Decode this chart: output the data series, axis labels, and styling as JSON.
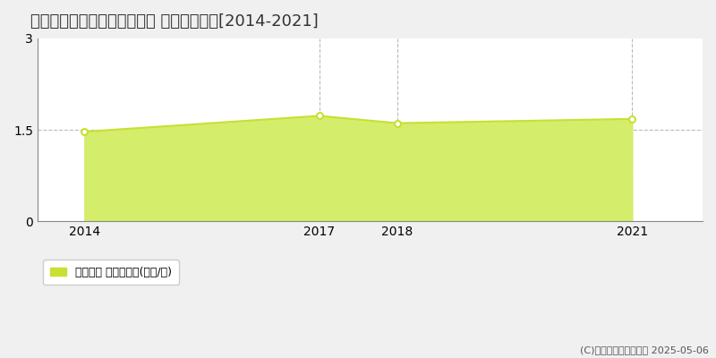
{
  "title": "小矢部市フロンティアパーク 土地価格推移[2014-2021]",
  "years": [
    2014,
    2017,
    2018,
    2021
  ],
  "values": [
    1.47,
    1.73,
    1.61,
    1.68
  ],
  "xlim": [
    2013.4,
    2021.9
  ],
  "ylim": [
    0,
    3.0
  ],
  "yticks": [
    0,
    1.5,
    3
  ],
  "xticks": [
    2014,
    2017,
    2018,
    2021
  ],
  "line_color": "#c8e032",
  "fill_color": "#d4ed6b",
  "fill_alpha": 1.0,
  "marker_color": "#ffffff",
  "marker_edge_color": "#c8e032",
  "grid_color": "#bbbbbb",
  "background_color": "#f0f0f0",
  "plot_bg_color": "#ffffff",
  "legend_label": "土地価格 平均坪単価(万円/坪)",
  "copyright_text": "(C)土地価格ドットコム 2025-05-06",
  "title_fontsize": 13,
  "tick_fontsize": 10,
  "legend_fontsize": 9,
  "copyright_fontsize": 8
}
